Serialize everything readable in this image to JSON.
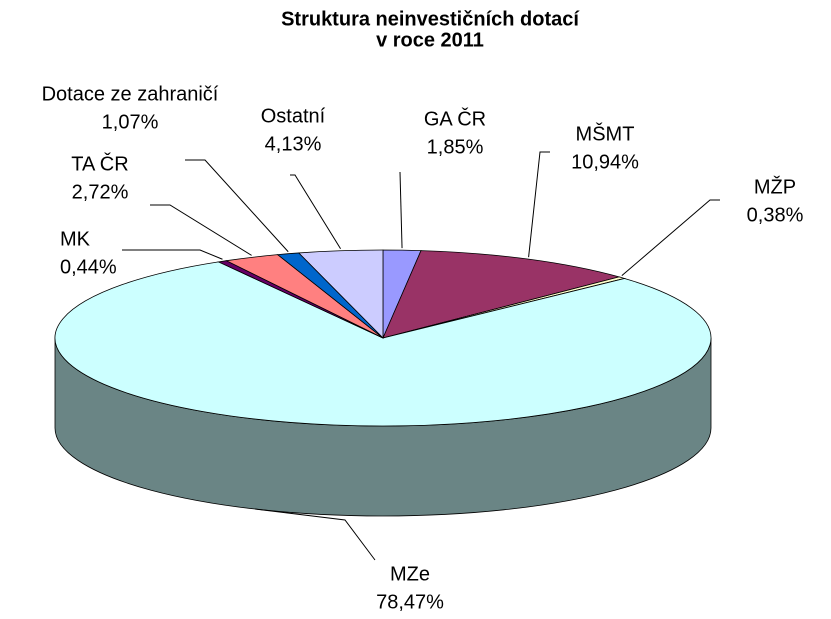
{
  "chart_data": {
    "type": "pie3d",
    "title": [
      "Struktura neinvestičních dotací",
      "v roce 2011"
    ],
    "categories": [
      "GA ČR",
      "MŠMT",
      "MŽP",
      "MZe",
      "MK",
      "TA ČR",
      "Dotace ze zahraničí",
      "Ostatní"
    ],
    "values": [
      1.85,
      10.94,
      0.38,
      78.47,
      0.44,
      2.72,
      1.07,
      4.13
    ],
    "value_labels": [
      "1,85%",
      "10,94%",
      "0,38%",
      "78,47%",
      "0,44%",
      "2,72%",
      "1,07%",
      "4,13%"
    ],
    "colors": [
      "#9999ff",
      "#993366",
      "#ffffcc",
      "#ccffff",
      "#660066",
      "#ff8080",
      "#0066cc",
      "#ccccff"
    ]
  }
}
